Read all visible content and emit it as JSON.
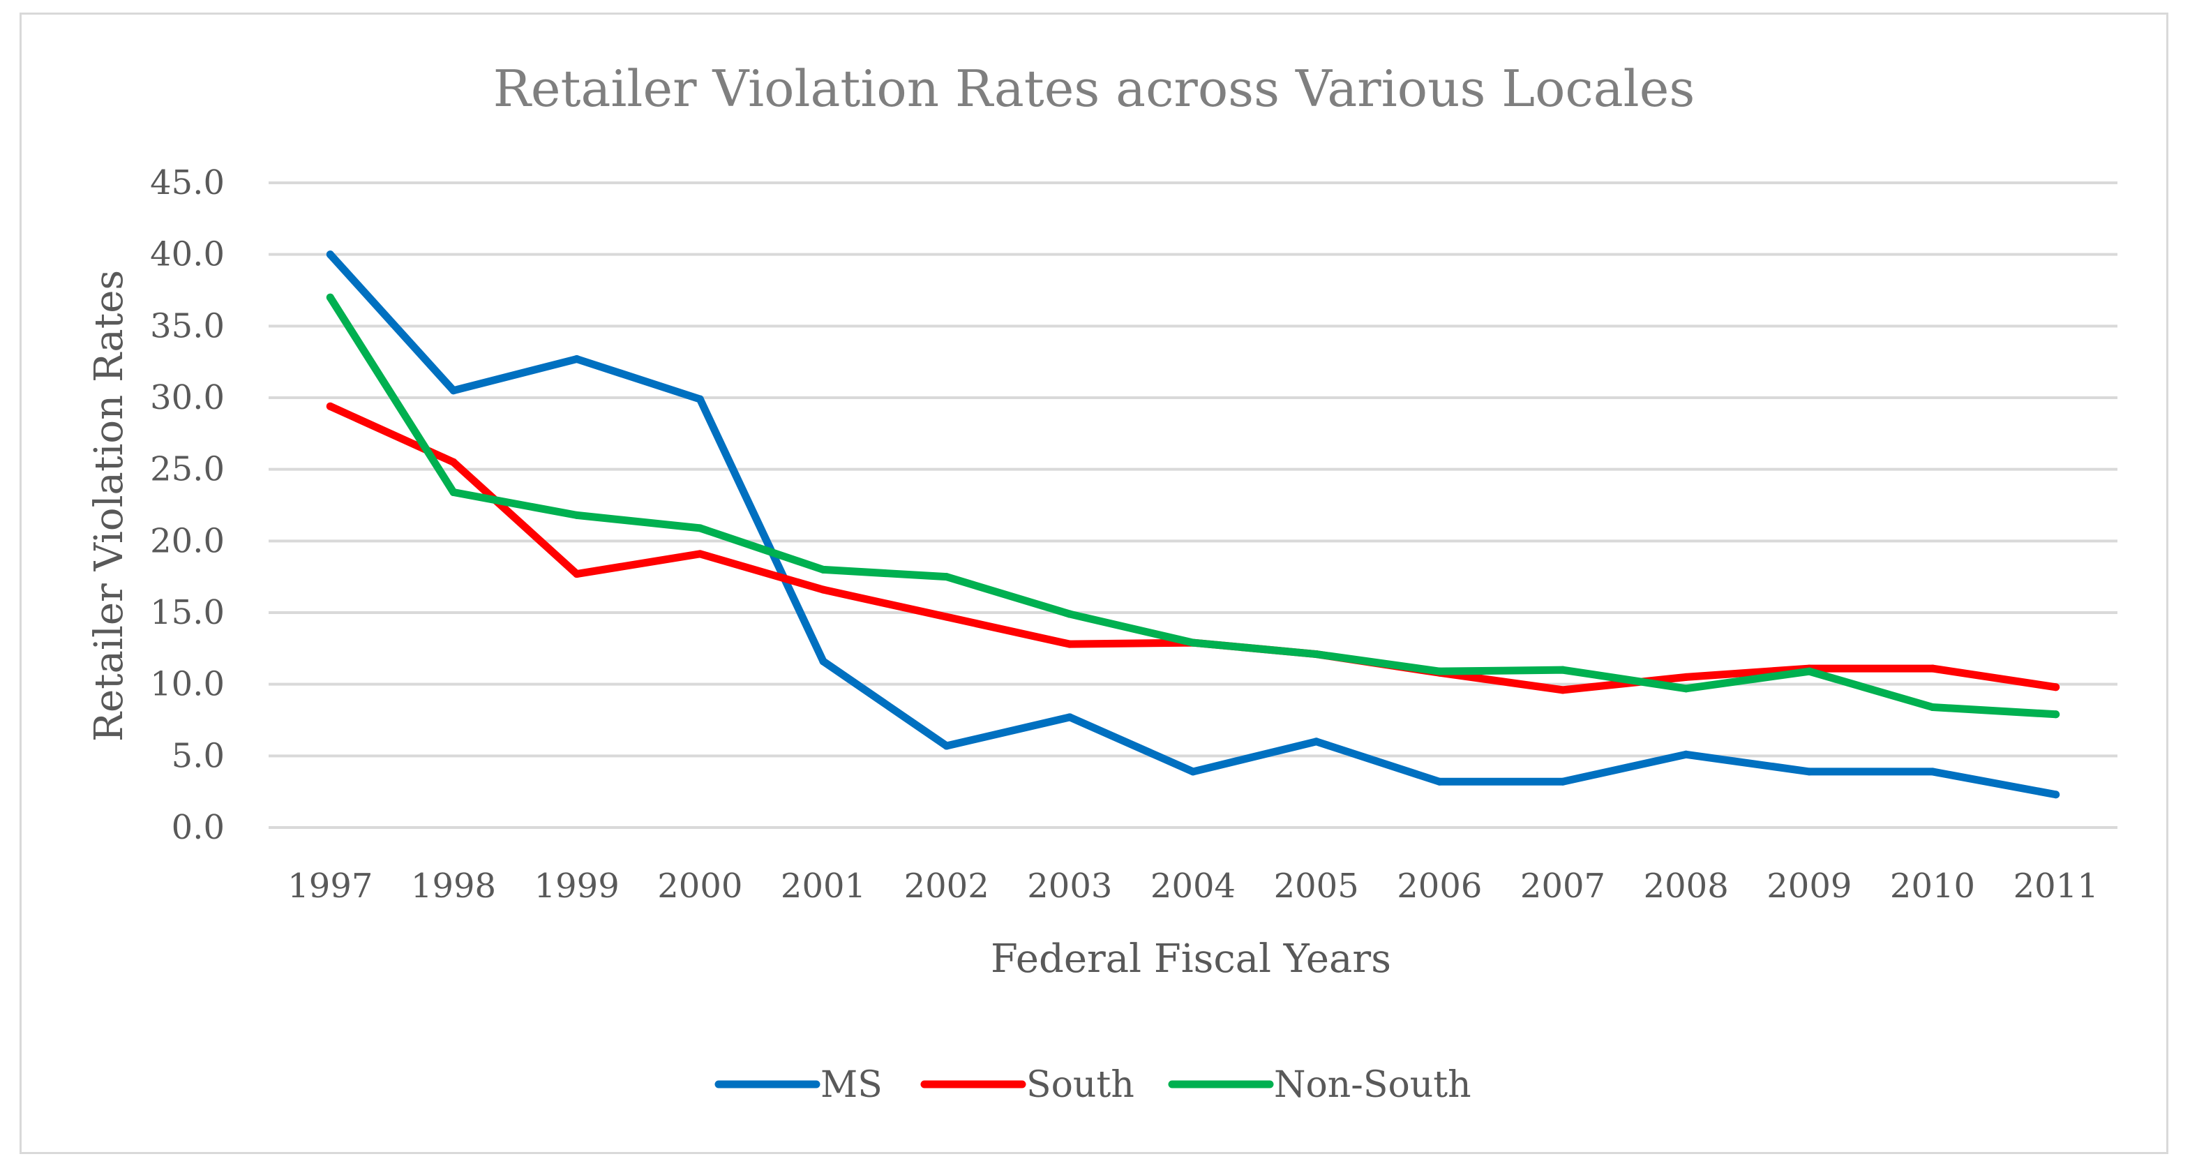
{
  "chart_data": {
    "type": "line",
    "title": "Retailer Violation Rates across Various Locales",
    "xlabel": "Federal Fiscal Years",
    "ylabel": "Retailer Violation Rates",
    "categories": [
      "1997",
      "1998",
      "1999",
      "2000",
      "2001",
      "2002",
      "2003",
      "2004",
      "2005",
      "2006",
      "2007",
      "2008",
      "2009",
      "2010",
      "2011"
    ],
    "yticks": [
      "0.0",
      "5.0",
      "10.0",
      "15.0",
      "20.0",
      "25.0",
      "30.0",
      "35.0",
      "40.0",
      "45.0"
    ],
    "ylim": [
      0,
      45
    ],
    "grid": true,
    "legend_position": "bottom",
    "series": [
      {
        "name": "MS",
        "color": "#0070C0",
        "values": [
          40.0,
          30.5,
          32.7,
          29.9,
          11.6,
          5.7,
          7.7,
          3.9,
          6.0,
          3.2,
          3.2,
          5.1,
          3.9,
          3.9,
          2.3
        ]
      },
      {
        "name": "South",
        "color": "#FF0000",
        "values": [
          29.4,
          25.5,
          17.7,
          19.1,
          16.6,
          14.7,
          12.8,
          12.9,
          12.1,
          10.8,
          9.6,
          10.5,
          11.1,
          11.1,
          9.8
        ]
      },
      {
        "name": "Non-South",
        "color": "#00B050",
        "values": [
          37.0,
          23.4,
          21.8,
          20.9,
          18.0,
          17.5,
          14.9,
          12.9,
          12.1,
          10.9,
          11.0,
          9.7,
          10.9,
          8.4,
          7.9
        ]
      }
    ]
  }
}
